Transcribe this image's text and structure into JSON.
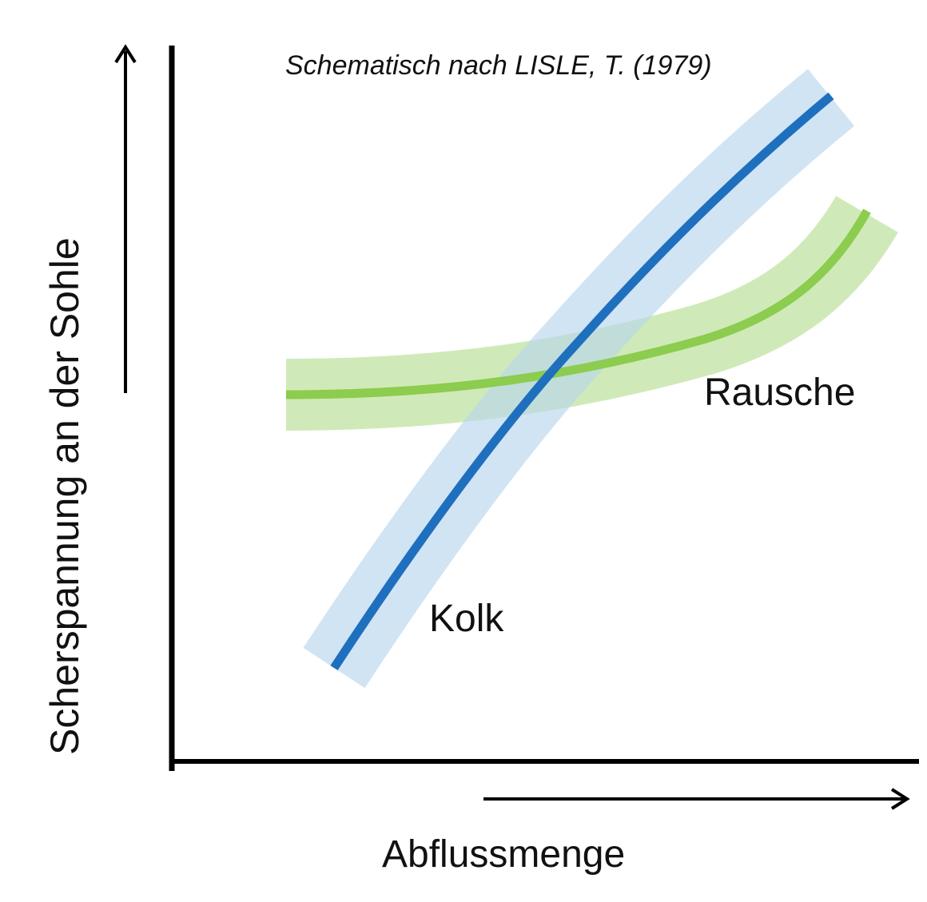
{
  "title": "Schematisch nach LISLE, T. (1979)",
  "y_axis_label": "Scherspannung an der Sohle",
  "x_axis_label": "Abflussmenge",
  "curves": [
    {
      "name": "Kolk",
      "line_color": "#1f6fbf",
      "band_color": "#b9d5ec"
    },
    {
      "name": "Rausche",
      "line_color": "#8ccc4e",
      "band_color": "#bfe3a0"
    }
  ]
}
